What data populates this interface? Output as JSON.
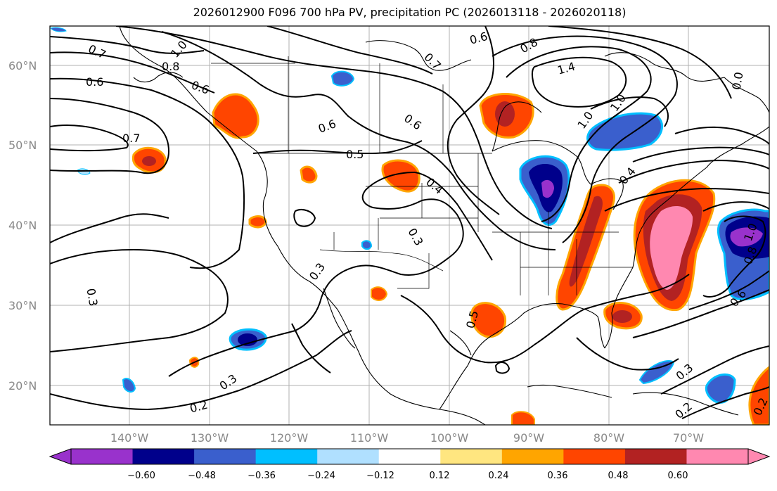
{
  "title": "2026012900 F096 700 hPa PV, precipitation PC (2026013118 - 2026020118)",
  "lat_labels": [
    "60°N",
    "50°N",
    "40°N",
    "30°N",
    "20°N"
  ],
  "lon_labels": [
    "140°W",
    "130°W",
    "120°W",
    "110°W",
    "100°W",
    "90°W",
    "80°W",
    "70°W"
  ],
  "contour_labels": [
    "1.0",
    "0.8",
    "0.7",
    "0.6",
    "0.6",
    "0.7",
    "0.6",
    "0.5",
    "0.6",
    "0.4",
    "0.3",
    "0.3",
    "0.3",
    "0.3",
    "0.2",
    "0.5",
    "0.6",
    "0.7",
    "0.8",
    "1.4",
    "1.0",
    "1.0",
    "0.4",
    "1.0",
    "0.8",
    "0.6",
    "0.3",
    "0.2",
    "0.2",
    "0.0"
  ],
  "colorbar": {
    "ticks": [
      "−0.60",
      "−0.48",
      "−0.36",
      "−0.24",
      "−0.12",
      "0.12",
      "0.24",
      "0.36",
      "0.48",
      "0.60"
    ],
    "colors": [
      "#9932cc",
      "#00008b",
      "#3a5fcd",
      "#00bfff",
      "#b0e0ff",
      "#ffffff",
      "#ffe680",
      "#ffa500",
      "#ff4500",
      "#b22222",
      "#ff88b0",
      "#ff88b0"
    ]
  }
}
